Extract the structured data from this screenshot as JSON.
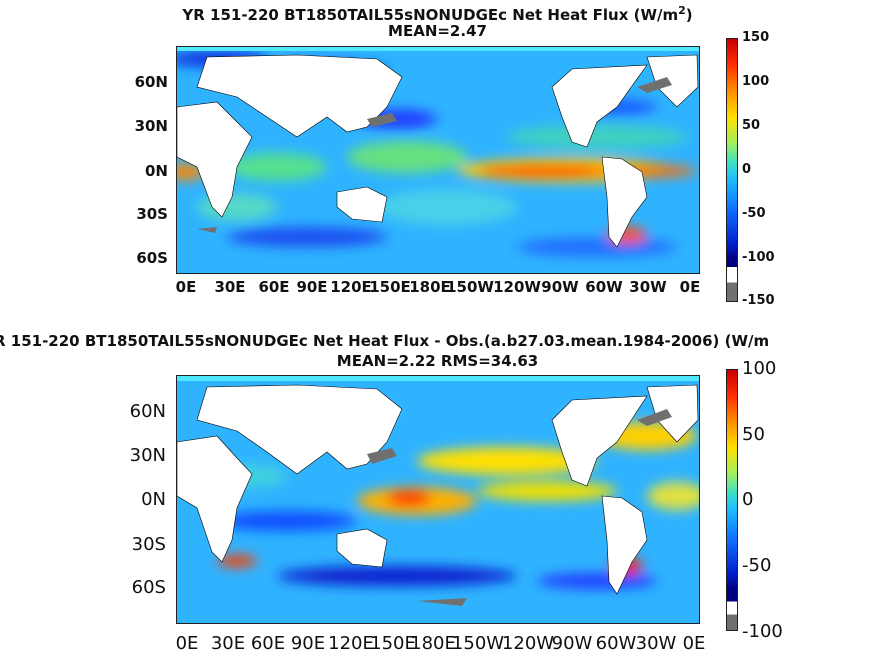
{
  "panel1": {
    "title": "YR 151-220 BT1850TAIL55sNONUDGEc  Net Heat Flux (W/m",
    "title_sup": "2",
    "title_end": ")",
    "subtitle": "MEAN=2.47",
    "y_ticks": [
      "60N",
      "30N",
      "0N",
      "30S",
      "60S"
    ],
    "x_ticks": [
      "0E",
      "30E",
      "60E",
      "90E",
      "120E",
      "150E",
      "180E",
      "150W",
      "120W",
      "90W",
      "60W",
      "30W",
      "0E"
    ],
    "colorbar": {
      "ticks": [
        "150",
        "100",
        "50",
        "0",
        "-50",
        "-100",
        "-150"
      ],
      "range": [
        -150,
        150
      ]
    }
  },
  "panel2": {
    "title": "R 151-220 BT1850TAIL55sNONUDGEc  Net Heat Flux - Obs.(a.b27.03.mean.1984-2006) (W/m",
    "subtitle": "MEAN=2.22 RMS=34.63",
    "y_ticks": [
      "60N",
      "30N",
      "0N",
      "30S",
      "60S"
    ],
    "x_ticks": [
      "0E",
      "30E",
      "60E",
      "90E",
      "120E",
      "150E",
      "180E",
      "150W",
      "120W",
      "90W",
      "60W",
      "30W",
      "0E"
    ],
    "colorbar": {
      "ticks": [
        "100",
        "50",
        "0",
        "-50",
        "-100"
      ],
      "range": [
        -100,
        100
      ]
    }
  },
  "colors": {
    "ocean_base": "#2fb3ff",
    "land": "#ffffff",
    "ice": "#707070"
  }
}
